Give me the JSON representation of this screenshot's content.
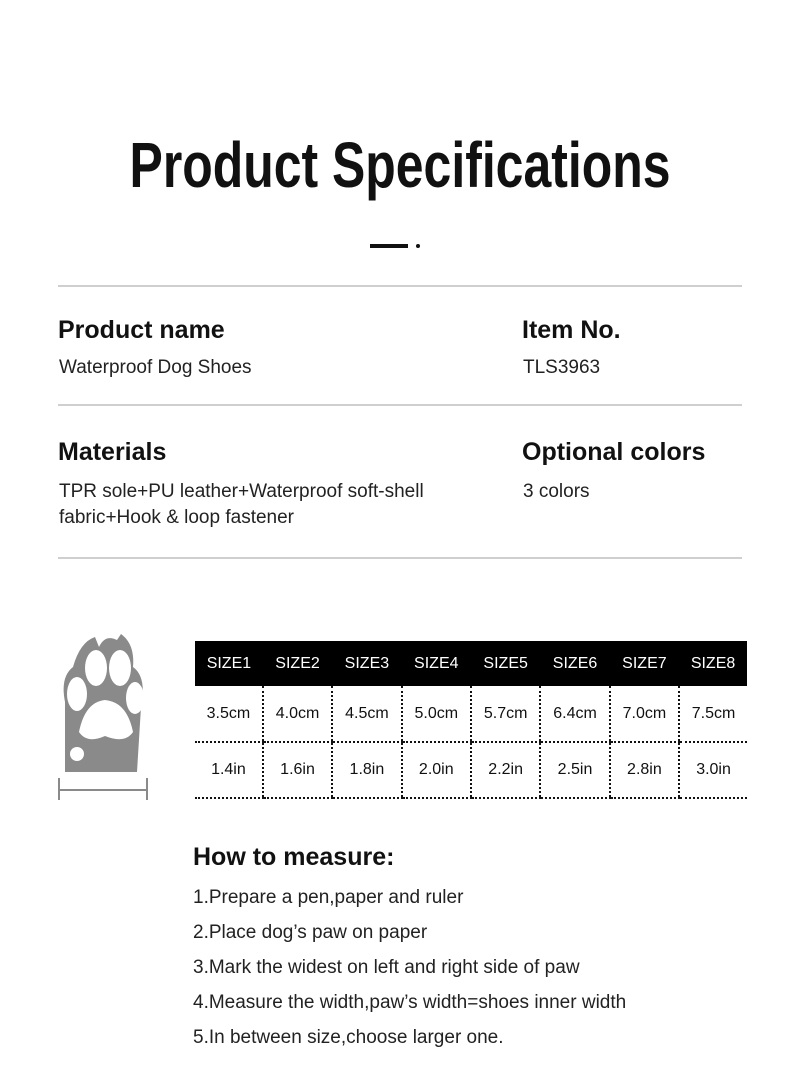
{
  "title": "Product Specifications",
  "specs": {
    "product_name_label": "Product name",
    "product_name": "Waterproof Dog Shoes",
    "item_no_label": "Item No.",
    "item_no": "TLS3963",
    "materials_label": "Materials",
    "materials": "TPR sole+PU leather+Waterproof soft-shell fabric+Hook & loop fastener",
    "colors_label": "Optional colors",
    "colors": "3 colors"
  },
  "size_table": {
    "headers": [
      "SIZE1",
      "SIZE2",
      "SIZE3",
      "SIZE4",
      "SIZE5",
      "SIZE6",
      "SIZE7",
      "SIZE8"
    ],
    "rows": [
      [
        "3.5cm",
        "4.0cm",
        "4.5cm",
        "5.0cm",
        "5.7cm",
        "6.4cm",
        "7.0cm",
        "7.5cm"
      ],
      [
        "1.4in",
        "1.6in",
        "1.8in",
        "2.0in",
        "2.2in",
        "2.5in",
        "2.8in",
        "3.0in"
      ]
    ]
  },
  "measure": {
    "title": "How to measure:",
    "steps": [
      "1.Prepare a pen,paper and ruler",
      "2.Place dog’s paw on paper",
      "3.Mark the widest on left and right side of paw",
      "4.Measure the width,paw’s width=shoes inner width",
      "5.In between size,choose larger one."
    ]
  },
  "icon": "paw-width-icon"
}
